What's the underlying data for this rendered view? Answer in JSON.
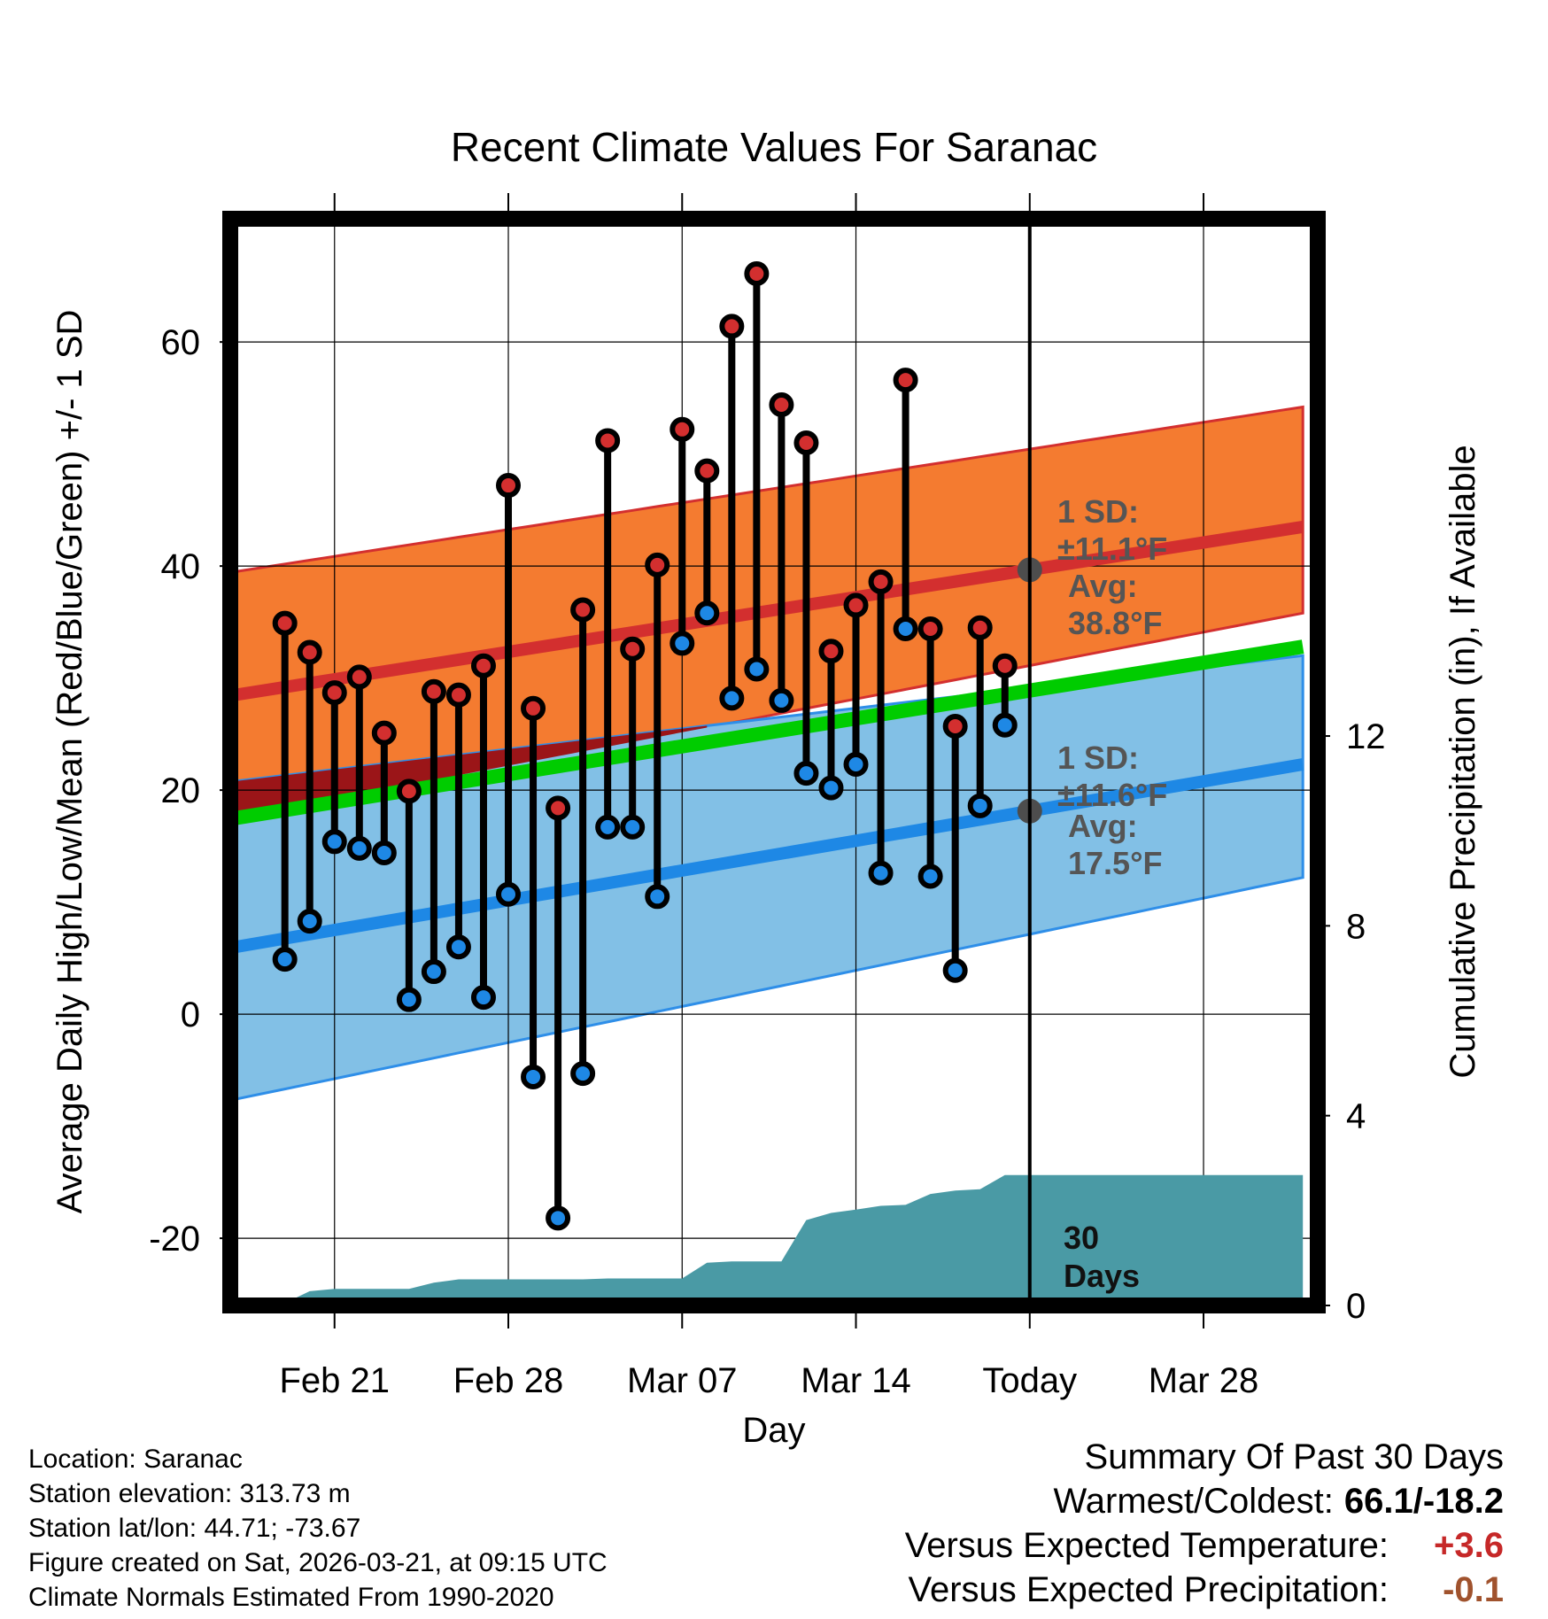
{
  "chart_data": {
    "type": "line",
    "title": "Recent Climate Values For Saranac",
    "xlabel": "Day",
    "ylabel": "Average Daily High/Low/Mean (Red/Blue/Green) +/- 1 SD",
    "y2label": "Cumulative Precipitation (in), If Available",
    "ylim": [
      -26,
      71
    ],
    "y2lim": [
      0,
      22.9
    ],
    "y_ticks": [
      -20,
      0,
      20,
      40,
      60
    ],
    "y2_ticks": [
      0,
      4,
      8,
      12
    ],
    "x_range": [
      -32.2,
      11.6
    ],
    "x_ticks": [
      {
        "day": -28,
        "label": "Feb 21"
      },
      {
        "day": -21,
        "label": "Feb 28"
      },
      {
        "day": -14,
        "label": "Mar 07"
      },
      {
        "day": -7,
        "label": "Mar 14"
      },
      {
        "day": 0,
        "label": "Today"
      },
      {
        "day": 7,
        "label": "Mar 28"
      }
    ],
    "normals": {
      "days": [
        -32,
        11
      ],
      "avg_high": [
        28.5,
        43.5
      ],
      "avg_high_sd_upper": [
        39.5,
        54.2
      ],
      "avg_high_sd_lower": [
        17.5,
        35.8
      ],
      "avg_low": [
        6.0,
        22.3
      ],
      "avg_low_sd_upper": [
        20.8,
        32.0
      ],
      "avg_low_sd_lower": [
        -7.6,
        12.2
      ],
      "avg_mean": [
        17.5,
        32.8
      ]
    },
    "series": [
      {
        "name": "Daily High",
        "color": "#d32f2f",
        "days": [
          -30,
          -29,
          -28,
          -27,
          -26,
          -25,
          -24,
          -23,
          -22,
          -21,
          -20,
          -19,
          -18,
          -17,
          -16,
          -15,
          -14,
          -13,
          -12,
          -11,
          -10,
          -9,
          -8,
          -7,
          -6,
          -5,
          -4,
          -3,
          -2,
          -1
        ],
        "values": [
          34.9,
          32.3,
          28.7,
          30.1,
          25.1,
          19.9,
          28.8,
          28.5,
          31.1,
          47.2,
          27.3,
          18.4,
          36.1,
          51.2,
          32.6,
          40.1,
          52.2,
          48.5,
          61.4,
          66.1,
          54.4,
          51.0,
          32.4,
          36.5,
          38.6,
          56.6,
          34.4,
          25.7,
          34.5,
          31.1
        ]
      },
      {
        "name": "Daily Low",
        "color": "#1e88e5",
        "days": [
          -30,
          -29,
          -28,
          -27,
          -26,
          -25,
          -24,
          -23,
          -22,
          -21,
          -20,
          -19,
          -18,
          -17,
          -16,
          -15,
          -14,
          -13,
          -12,
          -11,
          -10,
          -9,
          -8,
          -7,
          -6,
          -5,
          -4,
          -3,
          -2,
          -1
        ],
        "values": [
          4.9,
          8.3,
          15.4,
          14.8,
          14.4,
          1.3,
          3.8,
          6.0,
          1.5,
          10.7,
          -5.6,
          -18.2,
          -5.3,
          16.7,
          16.7,
          10.5,
          33.1,
          35.8,
          28.2,
          30.8,
          28.0,
          21.5,
          20.2,
          22.3,
          12.6,
          34.4,
          12.3,
          3.9,
          18.6,
          25.8
        ]
      },
      {
        "name": "Cumulative Precipitation",
        "color": "#4a9aa5",
        "days": [
          -31,
          -30,
          -29,
          -28,
          -27,
          -26,
          -25,
          -24,
          -23,
          -22,
          -21,
          -20,
          -19,
          -18,
          -17,
          -16,
          -15,
          -14,
          -13,
          -12,
          -11,
          -10,
          -9,
          -8,
          -7,
          -6,
          -5,
          -4,
          -3,
          -2,
          -1,
          0,
          11
        ],
        "values": [
          0,
          0.05,
          0.3,
          0.35,
          0.35,
          0.35,
          0.35,
          0.48,
          0.55,
          0.55,
          0.55,
          0.55,
          0.55,
          0.55,
          0.57,
          0.57,
          0.57,
          0.57,
          0.9,
          0.93,
          0.93,
          0.93,
          1.8,
          1.95,
          2.02,
          2.1,
          2.12,
          2.35,
          2.42,
          2.45,
          2.75,
          2.75,
          2.75
        ]
      }
    ],
    "annotations": {
      "high_sd": "1 SD:",
      "high_sd_value": "±11.1°F",
      "high_avg_label": "Avg:",
      "high_avg_value": "38.8°F",
      "low_sd": "1 SD:",
      "low_sd_value": "±11.6°F",
      "low_avg_label": "Avg:",
      "low_avg_value": "17.5°F",
      "window_label_1": "30",
      "window_label_2": "Days"
    },
    "grid": true
  },
  "info": {
    "location": "Location: Saranac",
    "elevation": "Station elevation: 313.73 m",
    "latlon": "Station lat/lon: 44.71; -73.67",
    "created": "Figure created on Sat, 2026-03-21, at 09:15 UTC",
    "normals_period": "Climate Normals Estimated From 1990-2020"
  },
  "summary": {
    "title": "Summary Of Past 30 Days",
    "warm_cold_label": "Warmest/Coldest:",
    "warm_cold_value": "66.1/-18.2",
    "temp_label": "Versus Expected Temperature:",
    "temp_value": "+3.6",
    "precip_label": "Versus Expected Precipitation:",
    "precip_value": "-0.1"
  }
}
